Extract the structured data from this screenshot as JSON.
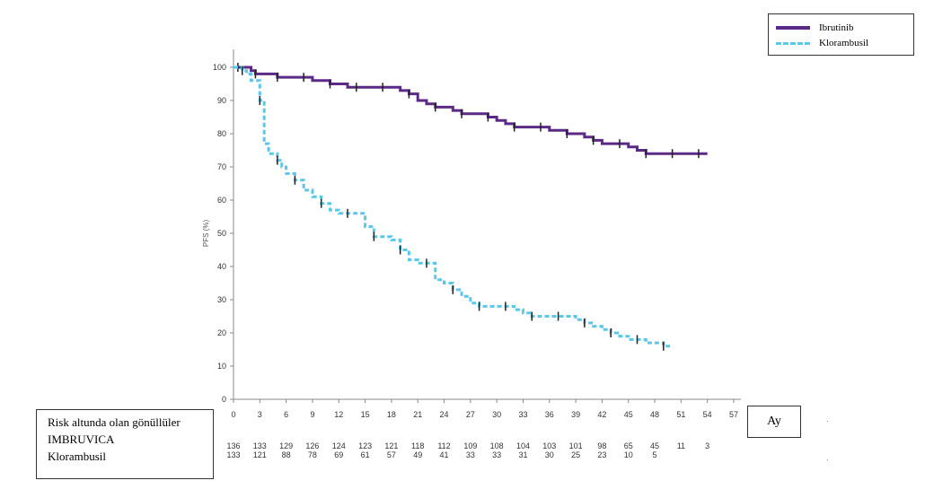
{
  "legend": {
    "items": [
      {
        "label": "Ibrutinib",
        "color": "#5b2a86",
        "style": "solid"
      },
      {
        "label": "Klorambusil",
        "color": "#5bc8e8",
        "style": "dashed"
      }
    ]
  },
  "risk_table": {
    "title": "Risk altunda olan gönüllüler",
    "row1_label": "IMBRUVICA",
    "row2_label": "Klorambusil",
    "row1_values": [
      "136",
      "133",
      "129",
      "126",
      "124",
      "123",
      "121",
      "118",
      "112",
      "109",
      "108",
      "104",
      "103",
      "101",
      "98",
      "65",
      "45",
      "11",
      "3"
    ],
    "row2_values": [
      "133",
      "121",
      "88",
      "78",
      "69",
      "61",
      "57",
      "49",
      "41",
      "33",
      "33",
      "31",
      "30",
      "25",
      "23",
      "10",
      "5"
    ]
  },
  "x_axis_title": "Ay",
  "chart_data": {
    "type": "line",
    "title": "",
    "xlabel": "Ay",
    "ylabel": "PFS (%)",
    "xlim": [
      0,
      57
    ],
    "ylim": [
      0,
      100
    ],
    "xticks": [
      0,
      3,
      6,
      9,
      12,
      15,
      18,
      21,
      24,
      27,
      30,
      33,
      36,
      39,
      42,
      45,
      48,
      51,
      54,
      57
    ],
    "yticks": [
      0,
      10,
      20,
      30,
      40,
      50,
      60,
      70,
      80,
      90,
      100
    ],
    "step": true,
    "series": [
      {
        "name": "Ibrutinib",
        "color": "#5b2a86",
        "style": "solid",
        "x": [
          0,
          0.5,
          1,
          2,
          2.5,
          3,
          4,
          5,
          6,
          7,
          8,
          9,
          10,
          11,
          12,
          13,
          14,
          15,
          16,
          17,
          18,
          19,
          20,
          21,
          22,
          23,
          24,
          25,
          26,
          27,
          28,
          29,
          30,
          31,
          32,
          33,
          34,
          35,
          36,
          37,
          38,
          39,
          40,
          41,
          42,
          43,
          44,
          45,
          46,
          47,
          48,
          49,
          50,
          51,
          52,
          53,
          54
        ],
        "y": [
          100,
          100,
          100,
          99,
          98,
          98,
          98,
          97,
          97,
          97,
          97,
          96,
          96,
          95,
          95,
          94,
          94,
          94,
          94,
          94,
          94,
          93,
          92,
          90,
          89,
          88,
          88,
          87,
          86,
          86,
          86,
          85,
          84,
          83,
          82,
          82,
          82,
          82,
          81,
          81,
          80,
          80,
          79,
          78,
          77,
          77,
          77,
          76,
          75,
          74,
          74,
          74,
          74,
          74,
          74,
          74,
          74
        ]
      },
      {
        "name": "Klorambusil",
        "color": "#5bc8e8",
        "style": "dashed",
        "x": [
          0,
          1,
          1.5,
          2,
          3,
          3.5,
          4,
          5,
          5.5,
          6,
          7,
          8,
          9,
          10,
          11,
          12,
          13,
          14,
          15,
          16,
          17,
          18,
          19,
          20,
          21,
          22,
          23,
          24,
          25,
          26,
          27,
          28,
          29,
          30,
          31,
          32,
          33,
          34,
          35,
          36,
          37,
          38,
          39,
          40,
          41,
          42,
          43,
          44,
          45,
          46,
          47,
          48,
          49,
          50
        ],
        "y": [
          100,
          99,
          98,
          96,
          90,
          77,
          74,
          72,
          70,
          68,
          66,
          63,
          61,
          59,
          57,
          56,
          56,
          56,
          52,
          49,
          49,
          48,
          45,
          42,
          41,
          41,
          36,
          35,
          33,
          31,
          29,
          28,
          28,
          28,
          28,
          27,
          26,
          25,
          25,
          25,
          25,
          25,
          24,
          23,
          22,
          21,
          20,
          19,
          18,
          18,
          17,
          17,
          16,
          16
        ]
      }
    ]
  }
}
